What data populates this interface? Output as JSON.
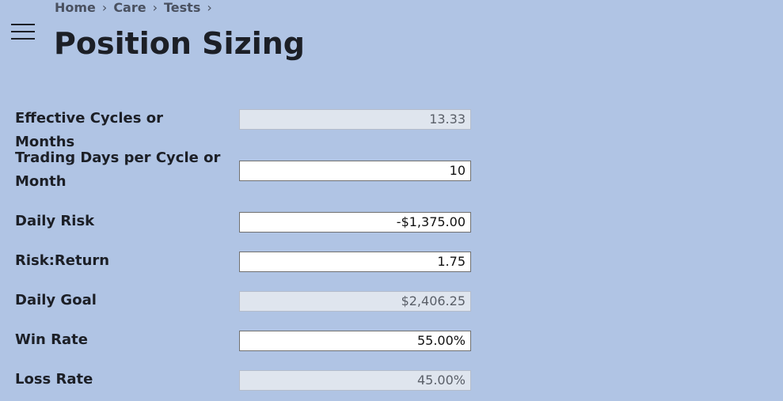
{
  "breadcrumb": {
    "items": [
      "Home",
      "Care",
      "Tests"
    ],
    "separator": "›"
  },
  "title": "Position Sizing",
  "fields": [
    {
      "label": "Effective Cycles or Months",
      "value": "13.33",
      "readonly": true
    },
    {
      "label": "Trading Days per Cycle or Month",
      "value": "10",
      "readonly": false
    },
    {
      "label": "Daily Risk",
      "value": "-$1,375.00",
      "readonly": false
    },
    {
      "label": "Risk:Return",
      "value": "1.75",
      "readonly": false
    },
    {
      "label": "Daily Goal",
      "value": "$2,406.25",
      "readonly": true
    },
    {
      "label": "Win Rate",
      "value": "55.00%",
      "readonly": false
    },
    {
      "label": "Loss Rate",
      "value": "45.00%",
      "readonly": true
    }
  ]
}
